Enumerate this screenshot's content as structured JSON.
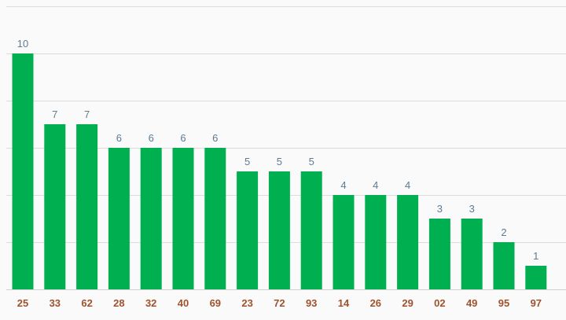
{
  "chart_data": {
    "type": "bar",
    "categories": [
      "25",
      "33",
      "62",
      "28",
      "32",
      "40",
      "69",
      "23",
      "72",
      "93",
      "14",
      "26",
      "29",
      "02",
      "49",
      "95",
      "97"
    ],
    "values": [
      10,
      7,
      7,
      6,
      6,
      6,
      6,
      5,
      5,
      5,
      4,
      4,
      4,
      3,
      3,
      2,
      1
    ],
    "title": "",
    "xlabel": "",
    "ylabel": "",
    "ylim": [
      0,
      12
    ],
    "grid": true,
    "y_tick_labels_shown": false,
    "data_labels": true,
    "legend": "none"
  },
  "colors": {
    "bar": "#00b050",
    "value_label": "#5d7b92",
    "tick_label": "#a0522d",
    "grid": "#dcdcdc",
    "background": "#fafafa"
  }
}
